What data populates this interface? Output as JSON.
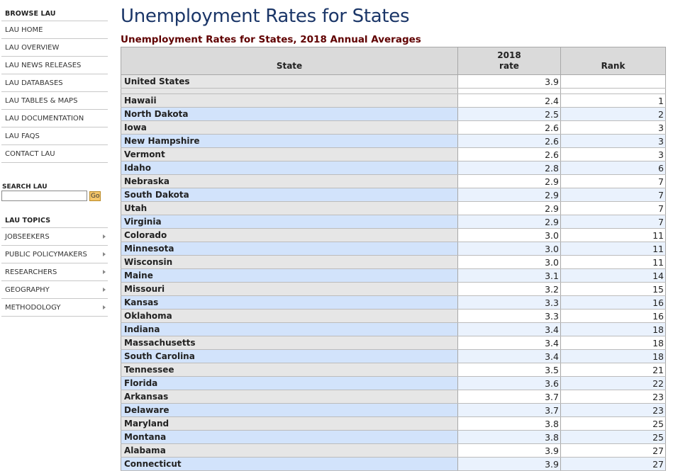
{
  "sidebar": {
    "browse_heading": "BROWSE LAU",
    "browse_items": [
      {
        "label": "LAU HOME"
      },
      {
        "label": "LAU OVERVIEW"
      },
      {
        "label": "LAU NEWS RELEASES"
      },
      {
        "label": "LAU DATABASES"
      },
      {
        "label": "LAU TABLES & MAPS"
      },
      {
        "label": "LAU DOCUMENTATION"
      },
      {
        "label": "LAU FAQS"
      },
      {
        "label": "CONTACT LAU"
      }
    ],
    "search": {
      "label": "SEARCH LAU",
      "value": "",
      "button": "Go"
    },
    "topics_heading": "LAU TOPICS",
    "topics_items": [
      {
        "label": "JOBSEEKERS"
      },
      {
        "label": "PUBLIC POLICYMAKERS"
      },
      {
        "label": "RESEARCHERS"
      },
      {
        "label": "GEOGRAPHY"
      },
      {
        "label": "METHODOLOGY"
      }
    ]
  },
  "main": {
    "title": "Unemployment Rates for States",
    "caption": "Unemployment Rates for States, 2018 Annual Averages",
    "columns": {
      "state": "State",
      "rate_year": "2018",
      "rate_label": "rate",
      "rank": "Rank"
    },
    "us_row": {
      "state": "United States",
      "rate": "3.9",
      "rank": ""
    },
    "rows": [
      {
        "state": "Hawaii",
        "rate": "2.4",
        "rank": "1"
      },
      {
        "state": "North Dakota",
        "rate": "2.5",
        "rank": "2"
      },
      {
        "state": "Iowa",
        "rate": "2.6",
        "rank": "3"
      },
      {
        "state": "New Hampshire",
        "rate": "2.6",
        "rank": "3"
      },
      {
        "state": "Vermont",
        "rate": "2.6",
        "rank": "3"
      },
      {
        "state": "Idaho",
        "rate": "2.8",
        "rank": "6"
      },
      {
        "state": "Nebraska",
        "rate": "2.9",
        "rank": "7"
      },
      {
        "state": "South Dakota",
        "rate": "2.9",
        "rank": "7"
      },
      {
        "state": "Utah",
        "rate": "2.9",
        "rank": "7"
      },
      {
        "state": "Virginia",
        "rate": "2.9",
        "rank": "7"
      },
      {
        "state": "Colorado",
        "rate": "3.0",
        "rank": "11"
      },
      {
        "state": "Minnesota",
        "rate": "3.0",
        "rank": "11"
      },
      {
        "state": "Wisconsin",
        "rate": "3.0",
        "rank": "11"
      },
      {
        "state": "Maine",
        "rate": "3.1",
        "rank": "14"
      },
      {
        "state": "Missouri",
        "rate": "3.2",
        "rank": "15"
      },
      {
        "state": "Kansas",
        "rate": "3.3",
        "rank": "16"
      },
      {
        "state": "Oklahoma",
        "rate": "3.3",
        "rank": "16"
      },
      {
        "state": "Indiana",
        "rate": "3.4",
        "rank": "18"
      },
      {
        "state": "Massachusetts",
        "rate": "3.4",
        "rank": "18"
      },
      {
        "state": "South Carolina",
        "rate": "3.4",
        "rank": "18"
      },
      {
        "state": "Tennessee",
        "rate": "3.5",
        "rank": "21"
      },
      {
        "state": "Florida",
        "rate": "3.6",
        "rank": "22"
      },
      {
        "state": "Arkansas",
        "rate": "3.7",
        "rank": "23"
      },
      {
        "state": "Delaware",
        "rate": "3.7",
        "rank": "23"
      },
      {
        "state": "Maryland",
        "rate": "3.8",
        "rank": "25"
      },
      {
        "state": "Montana",
        "rate": "3.8",
        "rank": "25"
      },
      {
        "state": "Alabama",
        "rate": "3.9",
        "rank": "27"
      },
      {
        "state": "Connecticut",
        "rate": "3.9",
        "rank": "27"
      }
    ]
  },
  "colors": {
    "title": "#1b3668",
    "caption": "#600000",
    "header_bg": "#dadada",
    "row_state_odd": "#e6e6e6",
    "row_state_even": "#d2e3fb",
    "row_num_even": "#eaf2fd",
    "go_button": "#f4c56a"
  },
  "icons": {
    "submenu_arrow": "chevron-right-icon"
  }
}
